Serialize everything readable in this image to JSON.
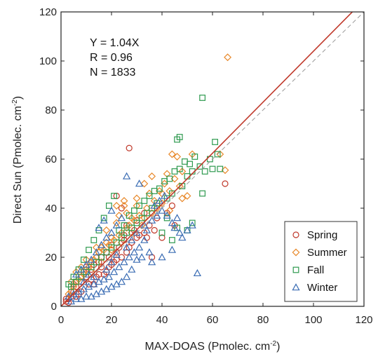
{
  "chart_data": {
    "type": "scatter",
    "xlabel": "MAX-DOAS (Pmolec. cm",
    "xlabel_sup": "-2",
    "xlabel_end": ")",
    "ylabel": "Direct Sun (Pmolec. cm",
    "ylabel_sup": "-2",
    "ylabel_end": ")",
    "xlim": [
      0,
      120
    ],
    "ylim": [
      0,
      120
    ],
    "xticks": [
      0,
      20,
      40,
      60,
      80,
      100,
      120
    ],
    "yticks": [
      0,
      20,
      40,
      60,
      80,
      100,
      120
    ],
    "grid": false,
    "legend_position": "bottom-right",
    "annotations": [
      "Y = 1.04X",
      "R = 0.96",
      "N = 1833"
    ],
    "fit_line": {
      "slope": 1.04,
      "color": "#c0392b"
    },
    "reference_line": {
      "slope": 1.0,
      "style": "dashed",
      "color": "#999999"
    },
    "series": [
      {
        "name": "Spring",
        "marker": "circle",
        "color": "#c0392b",
        "points": [
          [
            27,
            64.5
          ],
          [
            65,
            50
          ],
          [
            22,
            45
          ],
          [
            24,
            40
          ],
          [
            30,
            35
          ],
          [
            35,
            33
          ],
          [
            33,
            30
          ],
          [
            40,
            28
          ],
          [
            45,
            33
          ],
          [
            36,
            20
          ],
          [
            25,
            27
          ],
          [
            20,
            25
          ],
          [
            18,
            22
          ],
          [
            15,
            18
          ],
          [
            12,
            15
          ],
          [
            10,
            12
          ],
          [
            8,
            10
          ],
          [
            6,
            8
          ],
          [
            5,
            6
          ],
          [
            4,
            4
          ],
          [
            3,
            3
          ],
          [
            2,
            2
          ],
          [
            14,
            12
          ],
          [
            16,
            16
          ],
          [
            19,
            20
          ],
          [
            22,
            22
          ],
          [
            28,
            26
          ],
          [
            30,
            28
          ],
          [
            9,
            14
          ],
          [
            11,
            9
          ],
          [
            13,
            17
          ],
          [
            17,
            13
          ],
          [
            21,
            18
          ],
          [
            23,
            24
          ],
          [
            26,
            22
          ],
          [
            31,
            29
          ],
          [
            7,
            5
          ],
          [
            5,
            9
          ],
          [
            38,
            36
          ],
          [
            42,
            38
          ],
          [
            26,
            33
          ],
          [
            33,
            38
          ],
          [
            29,
            31
          ],
          [
            12,
            11
          ],
          [
            16,
            20
          ],
          [
            20,
            17
          ],
          [
            24,
            20
          ],
          [
            18,
            14
          ],
          [
            10,
            16
          ],
          [
            8,
            6
          ],
          [
            34,
            28
          ],
          [
            27,
            24
          ],
          [
            2,
            3
          ],
          [
            3,
            1.5
          ],
          [
            6,
            4
          ],
          [
            13,
            9
          ],
          [
            15,
            13
          ],
          [
            19,
            16
          ],
          [
            22,
            19
          ],
          [
            25,
            29
          ],
          [
            37,
            31
          ],
          [
            44,
            41
          ]
        ]
      },
      {
        "name": "Summer",
        "marker": "diamond",
        "color": "#e8892b",
        "points": [
          [
            66,
            101.5
          ],
          [
            63,
            62
          ],
          [
            65,
            55.5
          ],
          [
            46,
            61
          ],
          [
            52,
            62
          ],
          [
            48,
            55
          ],
          [
            42,
            54
          ],
          [
            36,
            53
          ],
          [
            40,
            46
          ],
          [
            30,
            44
          ],
          [
            25,
            43
          ],
          [
            22,
            41
          ],
          [
            33,
            36
          ],
          [
            38,
            40
          ],
          [
            43,
            47
          ],
          [
            47,
            49
          ],
          [
            50,
            45
          ],
          [
            28,
            36
          ],
          [
            26,
            32
          ],
          [
            24,
            30
          ],
          [
            20,
            28
          ],
          [
            18,
            26
          ],
          [
            16,
            24
          ],
          [
            14,
            20
          ],
          [
            12,
            18
          ],
          [
            10,
            15
          ],
          [
            8,
            12
          ],
          [
            6,
            10
          ],
          [
            5,
            8
          ],
          [
            4,
            6
          ],
          [
            3,
            5
          ],
          [
            9,
            13
          ],
          [
            11,
            16
          ],
          [
            13,
            19
          ],
          [
            15,
            22
          ],
          [
            17,
            23
          ],
          [
            19,
            25
          ],
          [
            21,
            27
          ],
          [
            23,
            29
          ],
          [
            27,
            33
          ],
          [
            29,
            35
          ],
          [
            31,
            37
          ],
          [
            34,
            40
          ],
          [
            37,
            43
          ],
          [
            39,
            47
          ],
          [
            41,
            50
          ],
          [
            45,
            52
          ],
          [
            7,
            11
          ],
          [
            12,
            14
          ],
          [
            16,
            18
          ],
          [
            20,
            23
          ],
          [
            24,
            26
          ],
          [
            28,
            30
          ],
          [
            32,
            33
          ],
          [
            36,
            38
          ],
          [
            40,
            42
          ],
          [
            18,
            31
          ],
          [
            22,
            34
          ],
          [
            26,
            38
          ],
          [
            30,
            41
          ],
          [
            14,
            24
          ],
          [
            10,
            19
          ],
          [
            8,
            16
          ],
          [
            6,
            14
          ],
          [
            4,
            10
          ],
          [
            43,
            39
          ],
          [
            48,
            44
          ],
          [
            35,
            46
          ],
          [
            44,
            62
          ],
          [
            23,
            37
          ],
          [
            25,
            41
          ],
          [
            33,
            50
          ]
        ]
      },
      {
        "name": "Fall",
        "marker": "square",
        "color": "#2e9a4f",
        "points": [
          [
            56,
            85
          ],
          [
            47,
            69
          ],
          [
            46,
            68
          ],
          [
            61,
            67
          ],
          [
            59,
            60
          ],
          [
            62,
            62
          ],
          [
            55,
            57
          ],
          [
            57,
            55
          ],
          [
            60,
            56
          ],
          [
            63,
            56
          ],
          [
            52,
            55
          ],
          [
            50,
            53
          ],
          [
            56,
            46
          ],
          [
            48,
            49
          ],
          [
            44,
            46
          ],
          [
            42,
            44
          ],
          [
            38,
            42
          ],
          [
            36,
            40
          ],
          [
            34,
            38
          ],
          [
            32,
            36
          ],
          [
            30,
            34
          ],
          [
            28,
            32
          ],
          [
            26,
            30
          ],
          [
            24,
            28
          ],
          [
            22,
            26
          ],
          [
            20,
            24
          ],
          [
            18,
            22
          ],
          [
            16,
            20
          ],
          [
            14,
            18
          ],
          [
            12,
            16
          ],
          [
            10,
            14
          ],
          [
            8,
            12
          ],
          [
            6,
            10
          ],
          [
            4,
            8
          ],
          [
            21,
            45
          ],
          [
            19,
            41
          ],
          [
            17,
            36
          ],
          [
            15,
            31
          ],
          [
            13,
            27
          ],
          [
            11,
            23
          ],
          [
            9,
            19
          ],
          [
            7,
            15
          ],
          [
            5,
            12
          ],
          [
            3,
            9
          ],
          [
            29,
            39
          ],
          [
            33,
            43
          ],
          [
            37,
            47
          ],
          [
            41,
            51
          ],
          [
            45,
            55
          ],
          [
            49,
            59
          ],
          [
            53,
            61
          ],
          [
            25,
            33
          ],
          [
            23,
            31
          ],
          [
            27,
            37
          ],
          [
            31,
            41
          ],
          [
            35,
            45
          ],
          [
            39,
            48
          ],
          [
            43,
            52
          ],
          [
            47,
            56
          ],
          [
            51,
            58
          ],
          [
            46,
            32
          ],
          [
            52,
            34
          ],
          [
            50,
            31
          ],
          [
            42,
            36
          ],
          [
            40,
            30
          ],
          [
            44,
            27
          ]
        ]
      },
      {
        "name": "Winter",
        "marker": "triangle",
        "color": "#3b6db4",
        "points": [
          [
            54,
            13.5
          ],
          [
            52,
            33
          ],
          [
            50,
            31
          ],
          [
            47,
            30
          ],
          [
            45,
            32
          ],
          [
            44,
            34
          ],
          [
            42,
            37
          ],
          [
            40,
            39
          ],
          [
            38,
            37
          ],
          [
            36,
            35
          ],
          [
            34,
            31
          ],
          [
            33,
            27
          ],
          [
            35,
            22
          ],
          [
            32,
            20
          ],
          [
            30,
            19
          ],
          [
            28,
            15
          ],
          [
            26,
            12
          ],
          [
            24,
            10
          ],
          [
            22,
            9
          ],
          [
            20,
            8
          ],
          [
            18,
            7
          ],
          [
            16,
            6
          ],
          [
            14,
            5
          ],
          [
            12,
            4
          ],
          [
            10,
            4
          ],
          [
            8,
            3
          ],
          [
            6,
            3
          ],
          [
            4,
            2
          ],
          [
            31,
            24
          ],
          [
            29,
            22
          ],
          [
            27,
            20
          ],
          [
            25,
            18
          ],
          [
            23,
            16
          ],
          [
            21,
            14
          ],
          [
            19,
            12
          ],
          [
            17,
            11
          ],
          [
            15,
            10
          ],
          [
            13,
            9
          ],
          [
            11,
            8
          ],
          [
            9,
            7
          ],
          [
            7,
            6
          ],
          [
            5,
            5
          ],
          [
            3,
            4
          ],
          [
            24,
            36
          ],
          [
            22,
            33
          ],
          [
            20,
            30
          ],
          [
            18,
            28
          ],
          [
            16,
            25
          ],
          [
            14,
            22
          ],
          [
            12,
            19
          ],
          [
            10,
            17
          ],
          [
            8,
            15
          ],
          [
            6,
            13
          ],
          [
            18,
            15
          ],
          [
            20,
            18
          ],
          [
            22,
            21
          ],
          [
            26,
            24
          ],
          [
            28,
            27
          ],
          [
            30,
            30
          ],
          [
            33,
            33
          ],
          [
            37,
            41
          ],
          [
            39,
            43
          ],
          [
            41,
            45
          ],
          [
            26,
            53
          ],
          [
            31,
            50
          ],
          [
            20,
            39
          ],
          [
            17,
            35
          ],
          [
            15,
            32
          ],
          [
            36,
            18
          ],
          [
            40,
            20
          ],
          [
            44,
            23
          ],
          [
            48,
            28
          ],
          [
            46,
            36
          ],
          [
            13,
            12
          ],
          [
            9,
            10
          ],
          [
            11,
            13
          ]
        ]
      }
    ]
  }
}
